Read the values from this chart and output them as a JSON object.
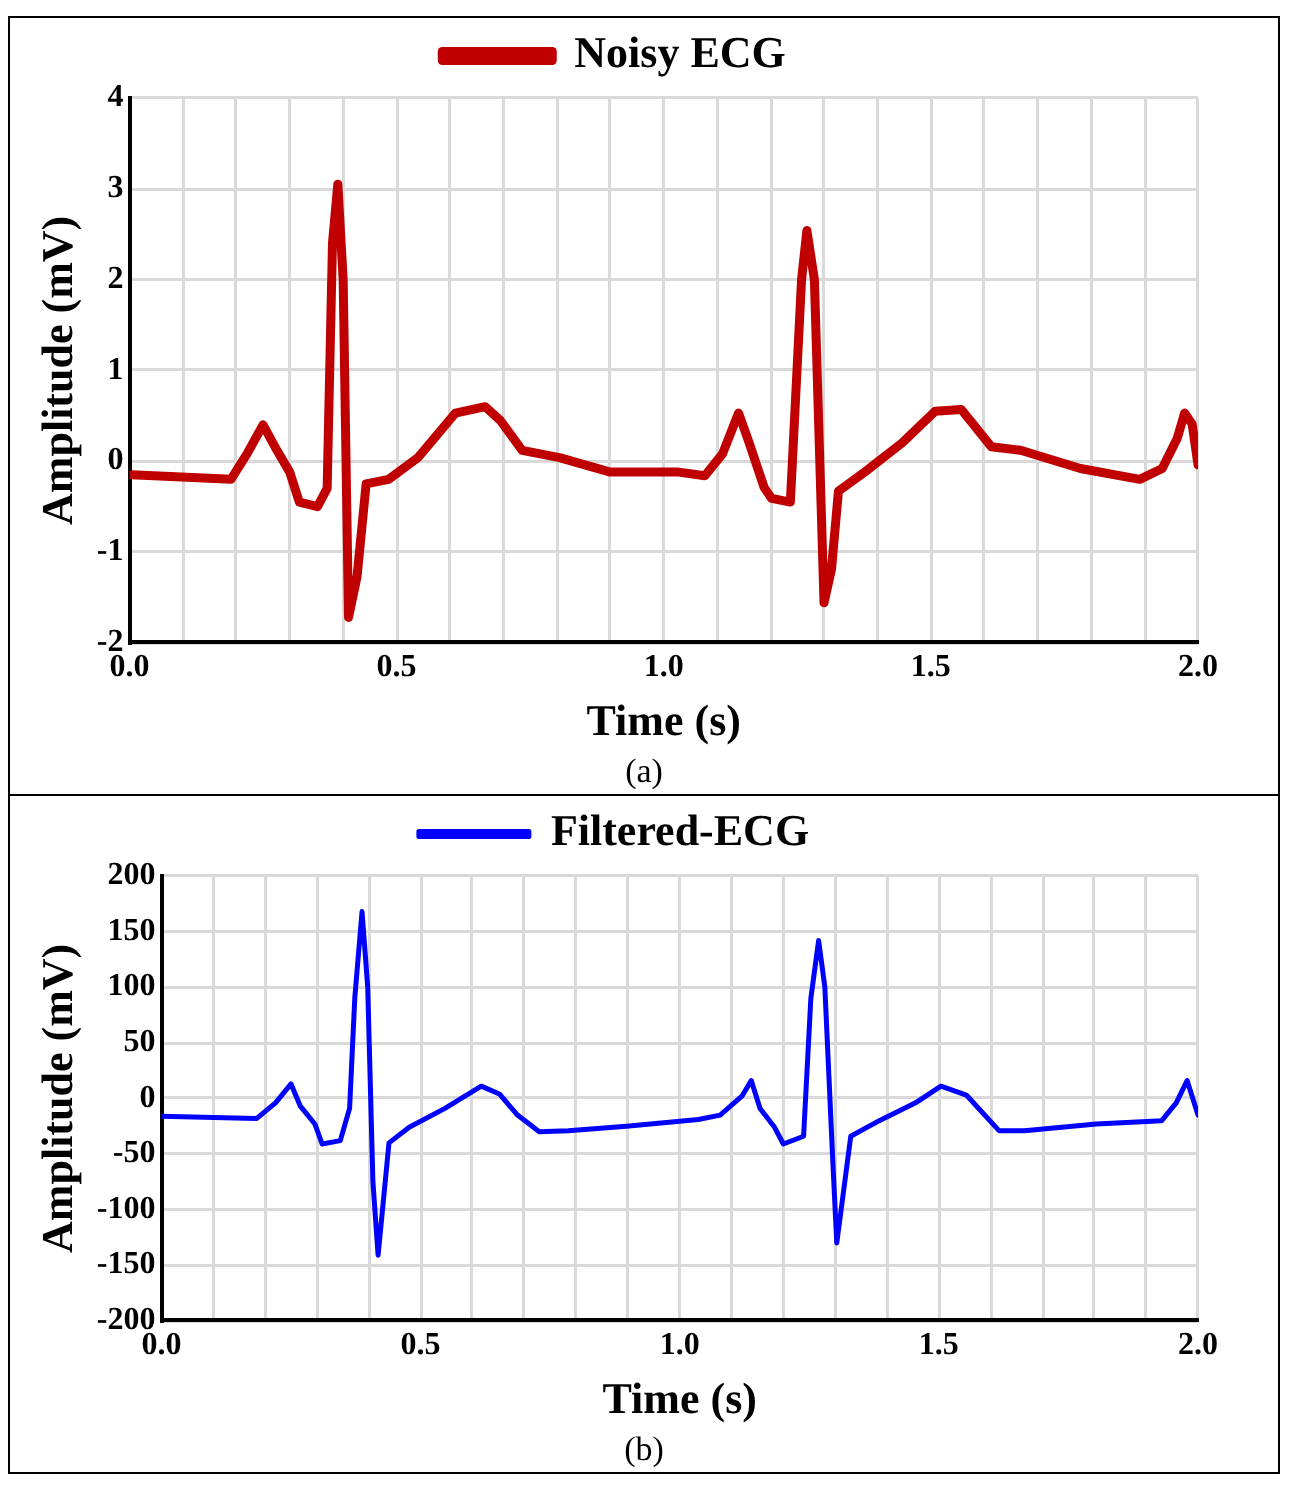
{
  "chart_data": [
    {
      "type": "line",
      "xlabel": "Time (s)",
      "ylabel": "Amplitude (mV)",
      "annotations": [
        "(a)"
      ],
      "legend": "top",
      "grid": true,
      "marker": "none",
      "line_style": "solid",
      "xlim": [
        0,
        2
      ],
      "ylim": [
        -2,
        4
      ],
      "xticks": [
        {
          "value": 0,
          "label": "0.0"
        },
        {
          "value": 0.1,
          "label": null
        },
        {
          "value": 0.2,
          "label": null
        },
        {
          "value": 0.3,
          "label": null
        },
        {
          "value": 0.4,
          "label": null
        },
        {
          "value": 0.5,
          "label": "0.5"
        },
        {
          "value": 0.6,
          "label": null
        },
        {
          "value": 0.7,
          "label": null
        },
        {
          "value": 0.8,
          "label": null
        },
        {
          "value": 0.9,
          "label": null
        },
        {
          "value": 1,
          "label": "1.0"
        },
        {
          "value": 1.1,
          "label": null
        },
        {
          "value": 1.2,
          "label": null
        },
        {
          "value": 1.3,
          "label": null
        },
        {
          "value": 1.4,
          "label": null
        },
        {
          "value": 1.5,
          "label": "1.5"
        },
        {
          "value": 1.6,
          "label": null
        },
        {
          "value": 1.7,
          "label": null
        },
        {
          "value": 1.8,
          "label": null
        },
        {
          "value": 1.9,
          "label": null
        },
        {
          "value": 2,
          "label": "2.0"
        }
      ],
      "yticks": [
        -2,
        -1,
        0,
        1,
        2,
        3,
        4
      ],
      "series": [
        {
          "name": "Noisy ECG",
          "color": "#c00000",
          "x": [
            0.004,
            0.19,
            0.22,
            0.25,
            0.276,
            0.3,
            0.318,
            0.352,
            0.37,
            0.38,
            0.39,
            0.4,
            0.41,
            0.426,
            0.443,
            0.485,
            0.54,
            0.61,
            0.666,
            0.694,
            0.735,
            0.805,
            0.9,
            1.028,
            1.077,
            1.11,
            1.14,
            1.16,
            1.188,
            1.202,
            1.237,
            1.258,
            1.268,
            1.282,
            1.3,
            1.314,
            1.327,
            1.376,
            1.446,
            1.508,
            1.557,
            1.613,
            1.668,
            1.78,
            1.891,
            1.933,
            1.961,
            1.975,
            1.989,
            2.0
          ],
          "values": [
            -0.15,
            -0.2,
            0.08,
            0.4,
            0.12,
            -0.12,
            -0.45,
            -0.5,
            -0.3,
            2.4,
            3.05,
            2.0,
            -1.72,
            -1.27,
            -0.25,
            -0.2,
            0.04,
            0.53,
            0.6,
            0.45,
            0.12,
            0.04,
            -0.12,
            -0.12,
            -0.16,
            0.08,
            0.53,
            0.2,
            -0.29,
            -0.41,
            -0.45,
            2.0,
            2.54,
            2.0,
            -1.56,
            -1.19,
            -0.33,
            -0.12,
            0.2,
            0.55,
            0.57,
            0.16,
            0.12,
            -0.08,
            -0.2,
            -0.08,
            0.25,
            0.53,
            0.41,
            -0.04
          ]
        }
      ]
    },
    {
      "type": "line",
      "xlabel": "Time (s)",
      "ylabel": "Amplitude (mV)",
      "annotations": [
        "(b)"
      ],
      "legend": "top",
      "grid": true,
      "marker": "none",
      "line_style": "solid",
      "xlim": [
        0,
        2
      ],
      "ylim": [
        -200,
        200
      ],
      "xticks": [
        {
          "value": 0,
          "label": "0.0"
        },
        {
          "value": 0.1,
          "label": null
        },
        {
          "value": 0.2,
          "label": null
        },
        {
          "value": 0.3,
          "label": null
        },
        {
          "value": 0.4,
          "label": null
        },
        {
          "value": 0.5,
          "label": "0.5"
        },
        {
          "value": 0.6,
          "label": null
        },
        {
          "value": 0.7,
          "label": null
        },
        {
          "value": 0.8,
          "label": null
        },
        {
          "value": 0.9,
          "label": null
        },
        {
          "value": 1,
          "label": "1.0"
        },
        {
          "value": 1.1,
          "label": null
        },
        {
          "value": 1.2,
          "label": null
        },
        {
          "value": 1.3,
          "label": null
        },
        {
          "value": 1.4,
          "label": null
        },
        {
          "value": 1.5,
          "label": "1.5"
        },
        {
          "value": 1.6,
          "label": null
        },
        {
          "value": 1.7,
          "label": null
        },
        {
          "value": 1.8,
          "label": null
        },
        {
          "value": 1.9,
          "label": null
        },
        {
          "value": 2,
          "label": "2.0"
        }
      ],
      "yticks": [
        -200,
        -150,
        -100,
        -50,
        0,
        50,
        100,
        150,
        200
      ],
      "series": [
        {
          "name": "Filtered-ECG",
          "color": "#0000ff",
          "x": [
            0,
            0.184,
            0.22,
            0.25,
            0.268,
            0.296,
            0.31,
            0.345,
            0.363,
            0.373,
            0.387,
            0.398,
            0.408,
            0.418,
            0.439,
            0.478,
            0.547,
            0.617,
            0.652,
            0.687,
            0.729,
            0.785,
            0.897,
            1.036,
            1.078,
            1.12,
            1.138,
            1.155,
            1.183,
            1.2,
            1.239,
            1.253,
            1.268,
            1.28,
            1.295,
            1.303,
            1.33,
            1.385,
            1.455,
            1.504,
            1.553,
            1.616,
            1.665,
            1.804,
            1.93,
            1.958,
            1.979,
            2.0
          ],
          "values": [
            -16,
            -18,
            -4,
            13,
            -7,
            -23,
            -41,
            -38,
            -9,
            90,
            168,
            100,
            -75,
            -141,
            -40,
            -26,
            -9,
            11,
            4,
            -15,
            -30,
            -29,
            -25,
            -19,
            -15,
            2,
            16,
            -9,
            -26,
            -41,
            -34,
            90,
            142,
            100,
            -53,
            -130,
            -34,
            -20,
            -4,
            11,
            3,
            -29,
            -29,
            -23,
            -20,
            -4,
            16,
            -15
          ]
        }
      ]
    }
  ]
}
